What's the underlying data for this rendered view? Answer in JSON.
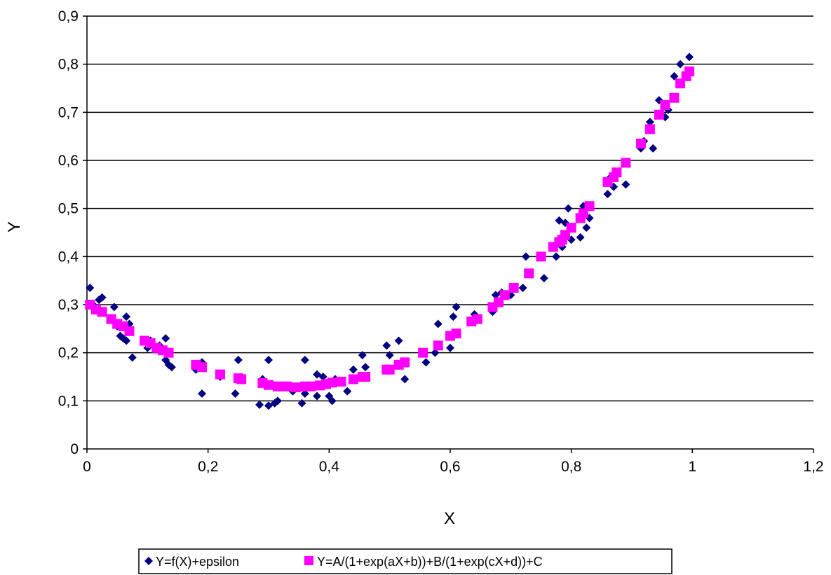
{
  "chart_data": {
    "type": "scatter",
    "title": "",
    "xlabel": "X",
    "ylabel": "Y",
    "xlim": [
      0,
      1.2
    ],
    "ylim": [
      0,
      0.9
    ],
    "xticks": [
      "0",
      "0,2",
      "0,4",
      "0,6",
      "0,8",
      "1",
      "1,2"
    ],
    "yticks": [
      "0",
      "0,1",
      "0,2",
      "0,3",
      "0,4",
      "0,5",
      "0,6",
      "0,7",
      "0,8",
      "0,9"
    ],
    "grid": "horizontal",
    "legend_position": "bottom",
    "series": [
      {
        "name": "Y=f(X)+epsilon",
        "color": "#000080",
        "marker": "diamond",
        "points": [
          [
            0.005,
            0.335
          ],
          [
            0.01,
            0.3
          ],
          [
            0.02,
            0.31
          ],
          [
            0.025,
            0.315
          ],
          [
            0.045,
            0.295
          ],
          [
            0.05,
            0.255
          ],
          [
            0.055,
            0.235
          ],
          [
            0.06,
            0.23
          ],
          [
            0.065,
            0.275
          ],
          [
            0.065,
            0.225
          ],
          [
            0.07,
            0.26
          ],
          [
            0.075,
            0.19
          ],
          [
            0.1,
            0.21
          ],
          [
            0.105,
            0.225
          ],
          [
            0.12,
            0.215
          ],
          [
            0.13,
            0.23
          ],
          [
            0.13,
            0.185
          ],
          [
            0.135,
            0.175
          ],
          [
            0.14,
            0.17
          ],
          [
            0.18,
            0.165
          ],
          [
            0.19,
            0.18
          ],
          [
            0.19,
            0.115
          ],
          [
            0.22,
            0.15
          ],
          [
            0.245,
            0.115
          ],
          [
            0.25,
            0.185
          ],
          [
            0.285,
            0.092
          ],
          [
            0.29,
            0.145
          ],
          [
            0.3,
            0.09
          ],
          [
            0.3,
            0.185
          ],
          [
            0.31,
            0.095
          ],
          [
            0.315,
            0.1
          ],
          [
            0.33,
            0.13
          ],
          [
            0.34,
            0.12
          ],
          [
            0.355,
            0.095
          ],
          [
            0.36,
            0.115
          ],
          [
            0.36,
            0.185
          ],
          [
            0.38,
            0.11
          ],
          [
            0.38,
            0.155
          ],
          [
            0.39,
            0.15
          ],
          [
            0.4,
            0.11
          ],
          [
            0.405,
            0.1
          ],
          [
            0.41,
            0.145
          ],
          [
            0.43,
            0.12
          ],
          [
            0.44,
            0.165
          ],
          [
            0.455,
            0.195
          ],
          [
            0.46,
            0.17
          ],
          [
            0.495,
            0.215
          ],
          [
            0.5,
            0.195
          ],
          [
            0.515,
            0.225
          ],
          [
            0.525,
            0.145
          ],
          [
            0.56,
            0.18
          ],
          [
            0.575,
            0.2
          ],
          [
            0.58,
            0.26
          ],
          [
            0.6,
            0.21
          ],
          [
            0.605,
            0.275
          ],
          [
            0.61,
            0.295
          ],
          [
            0.64,
            0.28
          ],
          [
            0.645,
            0.27
          ],
          [
            0.67,
            0.285
          ],
          [
            0.675,
            0.32
          ],
          [
            0.685,
            0.325
          ],
          [
            0.7,
            0.32
          ],
          [
            0.72,
            0.335
          ],
          [
            0.725,
            0.4
          ],
          [
            0.755,
            0.355
          ],
          [
            0.775,
            0.4
          ],
          [
            0.78,
            0.475
          ],
          [
            0.785,
            0.42
          ],
          [
            0.79,
            0.47
          ],
          [
            0.795,
            0.5
          ],
          [
            0.8,
            0.435
          ],
          [
            0.815,
            0.44
          ],
          [
            0.82,
            0.505
          ],
          [
            0.825,
            0.46
          ],
          [
            0.83,
            0.48
          ],
          [
            0.86,
            0.53
          ],
          [
            0.865,
            0.565
          ],
          [
            0.87,
            0.545
          ],
          [
            0.89,
            0.55
          ],
          [
            0.915,
            0.625
          ],
          [
            0.92,
            0.64
          ],
          [
            0.93,
            0.68
          ],
          [
            0.935,
            0.625
          ],
          [
            0.945,
            0.725
          ],
          [
            0.955,
            0.69
          ],
          [
            0.96,
            0.705
          ],
          [
            0.97,
            0.775
          ],
          [
            0.98,
            0.8
          ],
          [
            0.995,
            0.815
          ]
        ]
      },
      {
        "name": "Y=A/(1+exp(aX+b))+B/(1+exp(cX+d))+C",
        "color": "#ff00ff",
        "marker": "square",
        "points": [
          [
            0.005,
            0.3
          ],
          [
            0.015,
            0.29
          ],
          [
            0.025,
            0.285
          ],
          [
            0.04,
            0.27
          ],
          [
            0.05,
            0.26
          ],
          [
            0.06,
            0.255
          ],
          [
            0.07,
            0.245
          ],
          [
            0.095,
            0.225
          ],
          [
            0.105,
            0.22
          ],
          [
            0.115,
            0.21
          ],
          [
            0.125,
            0.205
          ],
          [
            0.135,
            0.2
          ],
          [
            0.18,
            0.175
          ],
          [
            0.19,
            0.17
          ],
          [
            0.22,
            0.155
          ],
          [
            0.25,
            0.147
          ],
          [
            0.255,
            0.145
          ],
          [
            0.29,
            0.137
          ],
          [
            0.3,
            0.133
          ],
          [
            0.315,
            0.13
          ],
          [
            0.33,
            0.13
          ],
          [
            0.345,
            0.128
          ],
          [
            0.36,
            0.13
          ],
          [
            0.37,
            0.13
          ],
          [
            0.385,
            0.132
          ],
          [
            0.395,
            0.135
          ],
          [
            0.405,
            0.138
          ],
          [
            0.42,
            0.14
          ],
          [
            0.44,
            0.145
          ],
          [
            0.455,
            0.15
          ],
          [
            0.46,
            0.15
          ],
          [
            0.495,
            0.165
          ],
          [
            0.5,
            0.165
          ],
          [
            0.515,
            0.175
          ],
          [
            0.525,
            0.18
          ],
          [
            0.555,
            0.2
          ],
          [
            0.58,
            0.215
          ],
          [
            0.6,
            0.235
          ],
          [
            0.61,
            0.24
          ],
          [
            0.635,
            0.265
          ],
          [
            0.645,
            0.27
          ],
          [
            0.67,
            0.295
          ],
          [
            0.68,
            0.305
          ],
          [
            0.69,
            0.32
          ],
          [
            0.705,
            0.335
          ],
          [
            0.73,
            0.365
          ],
          [
            0.75,
            0.4
          ],
          [
            0.77,
            0.42
          ],
          [
            0.78,
            0.43
          ],
          [
            0.785,
            0.435
          ],
          [
            0.79,
            0.445
          ],
          [
            0.8,
            0.46
          ],
          [
            0.815,
            0.48
          ],
          [
            0.82,
            0.49
          ],
          [
            0.83,
            0.505
          ],
          [
            0.86,
            0.555
          ],
          [
            0.87,
            0.565
          ],
          [
            0.875,
            0.575
          ],
          [
            0.89,
            0.595
          ],
          [
            0.915,
            0.635
          ],
          [
            0.93,
            0.665
          ],
          [
            0.945,
            0.695
          ],
          [
            0.955,
            0.715
          ],
          [
            0.97,
            0.73
          ],
          [
            0.98,
            0.76
          ],
          [
            0.99,
            0.775
          ],
          [
            0.995,
            0.785
          ]
        ]
      }
    ]
  }
}
